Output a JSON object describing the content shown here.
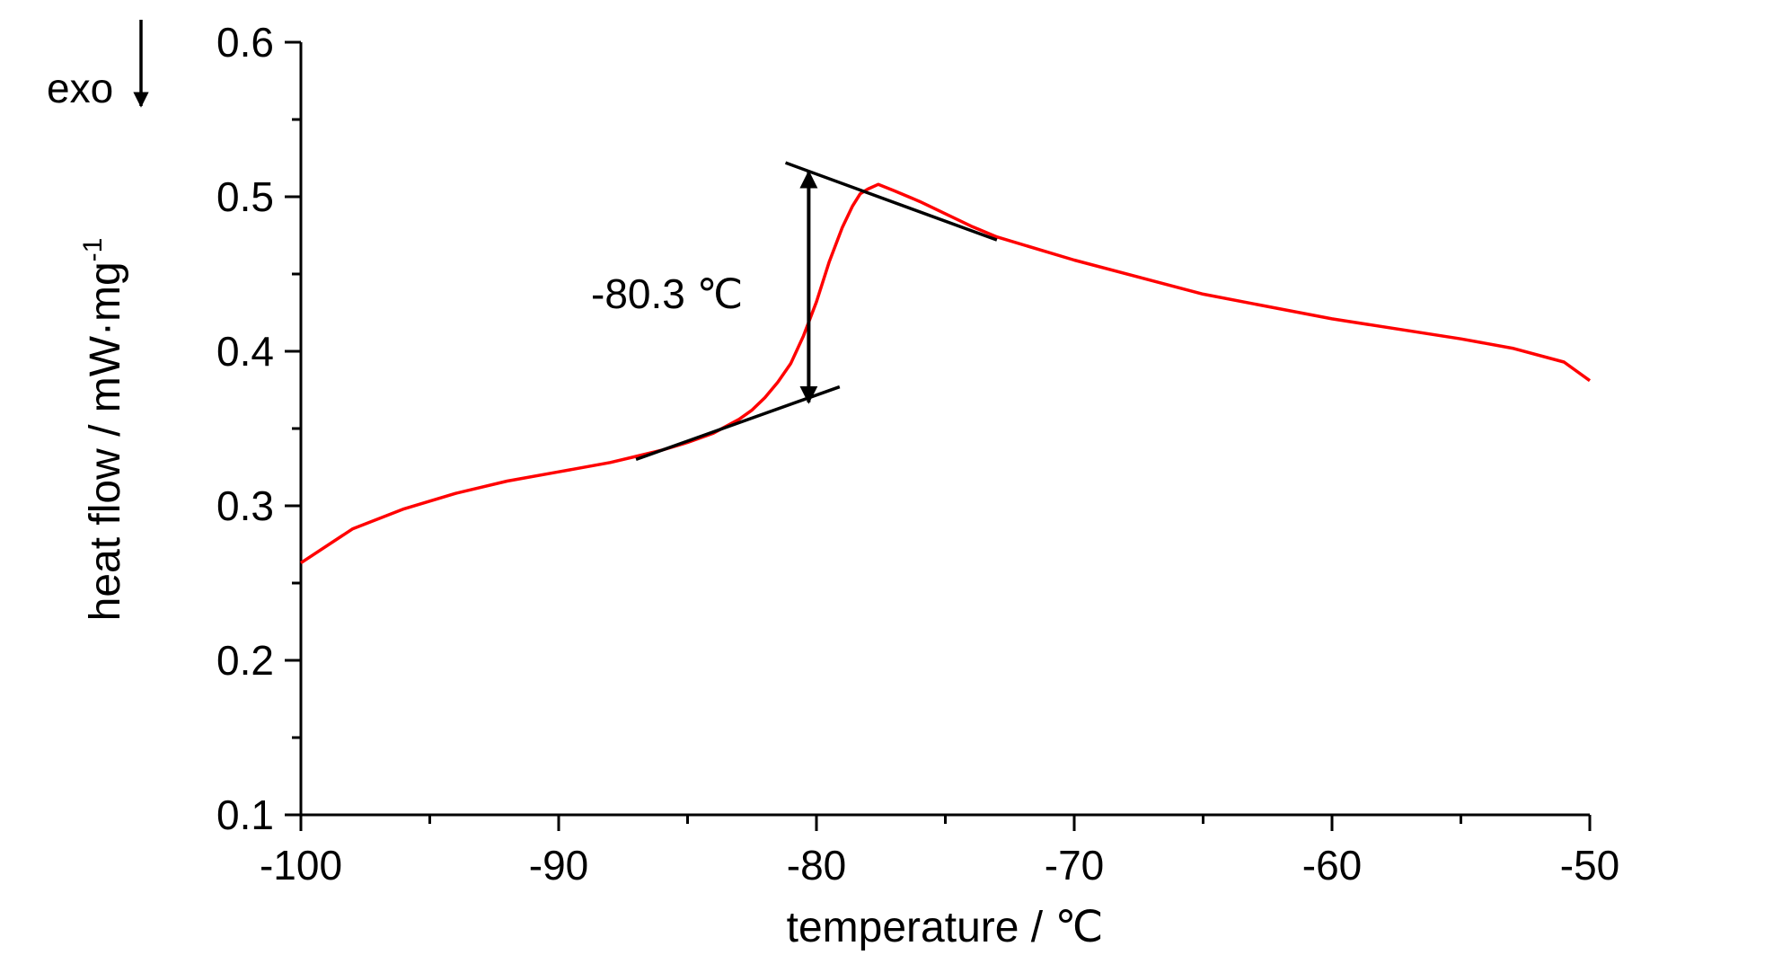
{
  "chart_data": {
    "type": "line",
    "title": "",
    "xlabel": "temperature / ℃",
    "ylabel": "heat flow / mW·mg",
    "ylabel_superscript": "-1",
    "xlim": [
      -100,
      -50
    ],
    "ylim": [
      0.1,
      0.6
    ],
    "xticks": [
      -100,
      -90,
      -80,
      -70,
      -60,
      -50
    ],
    "xtick_labels": [
      "-100",
      "-90",
      "-80",
      "-70",
      "-60",
      "-50"
    ],
    "yticks": [
      0.1,
      0.2,
      0.3,
      0.4,
      0.5,
      0.6
    ],
    "ytick_labels": [
      "0.1",
      "0.2",
      "0.3",
      "0.4",
      "0.5",
      "0.6"
    ],
    "grid": false,
    "line_color": "#ff0000",
    "series": [
      {
        "x": [
          -100,
          -98,
          -96,
          -94,
          -92,
          -90,
          -88,
          -87,
          -86,
          -85,
          -84,
          -83,
          -82.5,
          -82,
          -81.5,
          -81,
          -80.5,
          -80,
          -79.5,
          -79,
          -78.6,
          -78.3,
          -78,
          -77.6,
          -77,
          -76,
          -75,
          -74,
          -73,
          -70,
          -65,
          -60,
          -55,
          -53,
          -51,
          -50
        ],
        "y": [
          0.263,
          0.285,
          0.298,
          0.308,
          0.316,
          0.322,
          0.328,
          0.332,
          0.336,
          0.341,
          0.347,
          0.356,
          0.362,
          0.37,
          0.38,
          0.392,
          0.41,
          0.432,
          0.458,
          0.48,
          0.494,
          0.502,
          0.505,
          0.508,
          0.504,
          0.497,
          0.489,
          0.481,
          0.474,
          0.459,
          0.437,
          0.421,
          0.408,
          0.402,
          0.393,
          0.381
        ]
      }
    ],
    "baseline_tangents": [
      {
        "x": [
          -87,
          -79.1
        ],
        "y": [
          0.33,
          0.377
        ]
      },
      {
        "x": [
          -81.2,
          -73.0
        ],
        "y": [
          0.522,
          0.472
        ]
      }
    ],
    "step_arrow": {
      "x": -80.3,
      "y_low": 0.367,
      "y_high": 0.516
    },
    "annotations": [
      {
        "text": "-80.3 ℃",
        "x": -80.3
      },
      {
        "text": "exo",
        "arrow": "down"
      }
    ]
  }
}
